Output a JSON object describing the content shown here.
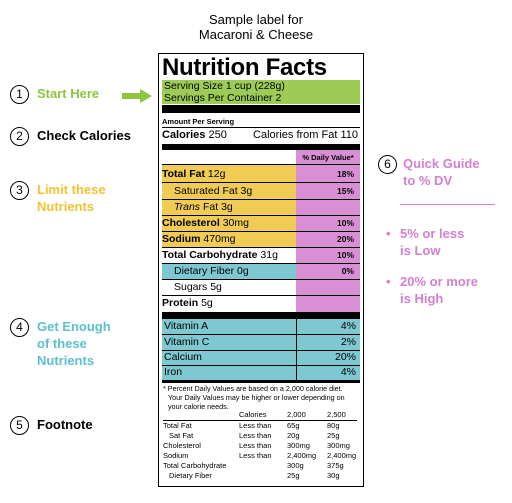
{
  "header": {
    "line1": "Sample label for",
    "line2": "Macaroni & Cheese"
  },
  "steps": [
    {
      "num": "1",
      "label": "Start Here",
      "color": "#8cc63f"
    },
    {
      "num": "2",
      "label": "Check Calories",
      "color": "#000000"
    },
    {
      "num": "3",
      "label_l1": "Limit these",
      "label_l2": "Nutrients",
      "color": "#f2c233"
    },
    {
      "num": "4",
      "label_l1": "Get Enough",
      "label_l2": "of these",
      "label_l3": "Nutrients",
      "color": "#5bbfcf"
    },
    {
      "num": "5",
      "label": "Footnote",
      "color": "#000000"
    }
  ],
  "guide": {
    "num": "6",
    "title_l1": "Quick Guide",
    "title_l2": "to % DV",
    "low_l1": "5% or less",
    "low_l2": "is Low",
    "high_l1": "20% or more",
    "high_l2": "is High",
    "color": "#d47fcf"
  },
  "colors": {
    "green": "#9ccc55",
    "yellow": "#f0cb55",
    "blue": "#7ec8d2",
    "pink": "#d88fd3"
  },
  "label": {
    "title": "Nutrition Facts",
    "serving_size": "Serving Size 1 cup (228g)",
    "servings": "Servings Per Container 2",
    "amount_per": "Amount Per Serving",
    "calories_label": "Calories",
    "calories": "250",
    "cal_fat": "Calories from Fat 110",
    "dv_header": "% Daily Value*",
    "limit_rows": [
      {
        "name": "Total Fat",
        "amount": "12g",
        "pct": "18%",
        "bold": true
      },
      {
        "name": "Saturated Fat",
        "amount": "3g",
        "pct": "15%",
        "bold": false
      },
      {
        "name": "Trans",
        "name_rest": " Fat",
        "amount": "3g",
        "pct": "",
        "bold": false
      },
      {
        "name": "Cholesterol",
        "amount": "30mg",
        "pct": "10%",
        "bold": true
      },
      {
        "name": "Sodium",
        "amount": "470mg",
        "pct": "20%",
        "bold": true
      }
    ],
    "carb": {
      "name": "Total Carbohydrate",
      "amount": "31g",
      "pct": "10%"
    },
    "fiber": {
      "name": "Dietary Fiber",
      "amount": "0g",
      "pct": "0%"
    },
    "sugars": {
      "name": "Sugars",
      "amount": "5g"
    },
    "protein": {
      "name": "Protein",
      "amount": "5g"
    },
    "vitamins": [
      {
        "name": "Vitamin A",
        "pct": "4%"
      },
      {
        "name": "Vitamin C",
        "pct": "2%"
      },
      {
        "name": "Calcium",
        "pct": "20%"
      },
      {
        "name": "Iron",
        "pct": "4%"
      }
    ],
    "footnote_l1": "* Percent Daily Values are based on a 2,000 calorie diet.",
    "footnote_l2": "Your Daily Values may be higher or lower depending on",
    "footnote_l3": "your calorie needs.",
    "fn_table": {
      "header": [
        "Calories",
        "2,000",
        "2,500"
      ],
      "rows": [
        [
          "Total Fat",
          "Less than",
          "65g",
          "80g"
        ],
        [
          "Sat Fat",
          "Less than",
          "20g",
          "25g"
        ],
        [
          "Cholesterol",
          "Less than",
          "300mg",
          "300mg"
        ],
        [
          "Sodium",
          "Less than",
          "2,400mg",
          "2,400mg"
        ],
        [
          "Total Carbohydrate",
          "",
          "300g",
          "375g"
        ],
        [
          "Dietary Fiber",
          "",
          "25g",
          "30g"
        ]
      ]
    }
  }
}
